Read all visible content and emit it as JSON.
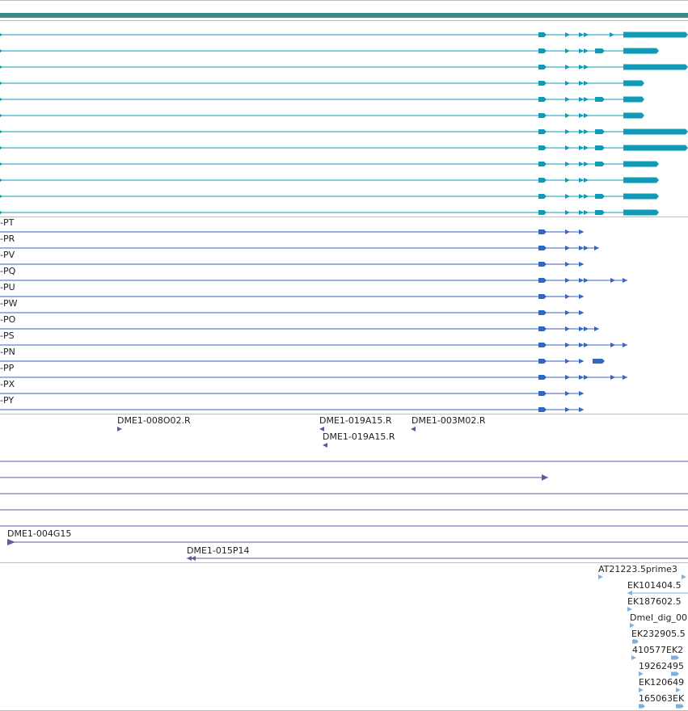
{
  "colors": {
    "gene": "#3a8c8a",
    "mrna": "#0f9bb8",
    "protein": "#3365c4",
    "clone": "#6d52a0",
    "est": "#7fb1dc",
    "divider": "#bdbdbd"
  },
  "protein_track": {
    "labels": [
      "-PT",
      "-PR",
      "-PV",
      "-PQ",
      "-PU",
      "-PW",
      "-PO",
      "-PS",
      "-PN",
      "-PP",
      "-PX",
      "-PY"
    ]
  },
  "clone_track": {
    "labels": [
      "DME1-008O02.R",
      "DME1-019A15.R",
      "DME1-003M02.R",
      "DME1-019A15.R"
    ]
  },
  "bac_track": {
    "labels": [
      "DME1-004G15",
      "DME1-015P14"
    ]
  },
  "est_track": {
    "labels": [
      "AT21223.5prime3",
      "EK101404.5",
      "EK187602.5",
      "Dmel_dig_00",
      "EK232905.5",
      "410577EK2",
      "19262495",
      "EK120649",
      "165063EK"
    ]
  }
}
